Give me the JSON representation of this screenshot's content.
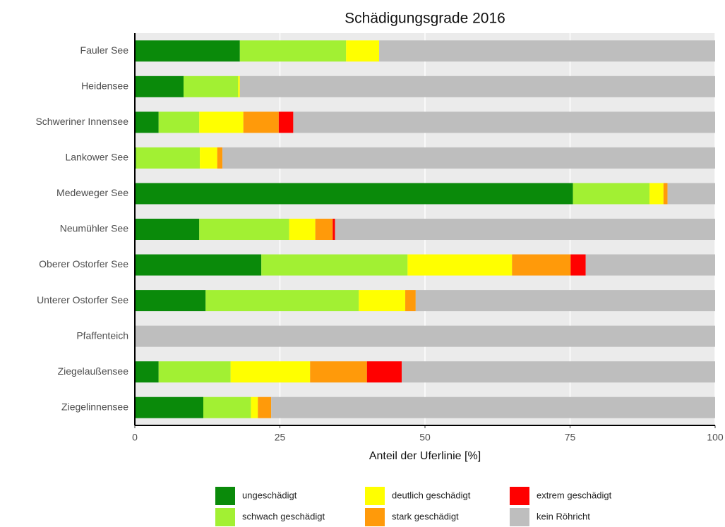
{
  "chart_data": {
    "type": "stacked_barh",
    "title": "Schädigungsgrade 2016",
    "xlabel": "Anteil der Uferlinie [%]",
    "categories": [
      "Fauler See",
      "Heidensee",
      "Schweriner Innensee",
      "Lankower See",
      "Medeweger See",
      "Neumühler See",
      "Oberer Ostorfer See",
      "Unterer Ostorfer See",
      "Pfaffenteich",
      "Ziegelaußensee",
      "Ziegelinnensee"
    ],
    "series": [
      {
        "name": "ungeschädigt",
        "color": "#0a8a0a",
        "values": [
          18.1,
          8.4,
          4.1,
          0.2,
          75.5,
          11.1,
          21.8,
          12.2,
          0,
          4.1,
          11.8
        ]
      },
      {
        "name": "schwach geschädigt",
        "color": "#a2f033",
        "values": [
          18.3,
          9.4,
          7.0,
          11.0,
          13.2,
          15.5,
          25.2,
          26.4,
          0,
          12.4,
          8.2
        ]
      },
      {
        "name": "deutlich geschädigt",
        "color": "#ffff00",
        "values": [
          5.7,
          0.3,
          7.6,
          3.0,
          2.4,
          4.5,
          18.0,
          8.0,
          0,
          13.7,
          1.2
        ]
      },
      {
        "name": "stark geschädigt",
        "color": "#ff9a0a",
        "values": [
          0,
          0,
          6.1,
          0.9,
          0.7,
          3.0,
          10.1,
          1.8,
          0,
          9.8,
          2.3
        ]
      },
      {
        "name": "extrem geschädigt",
        "color": "#ff0000",
        "values": [
          0,
          0,
          2.5,
          0,
          0,
          0.4,
          2.6,
          0,
          0,
          6.0,
          0
        ]
      },
      {
        "name": "kein Röhricht",
        "color": "#bebebe",
        "values": [
          57.9,
          81.9,
          72.7,
          84.9,
          8.2,
          65.5,
          22.3,
          51.6,
          100,
          54.0,
          76.5
        ]
      }
    ],
    "xlim": [
      0,
      100
    ],
    "xticks": [
      0,
      25,
      50,
      75,
      100
    ],
    "grid": true
  }
}
